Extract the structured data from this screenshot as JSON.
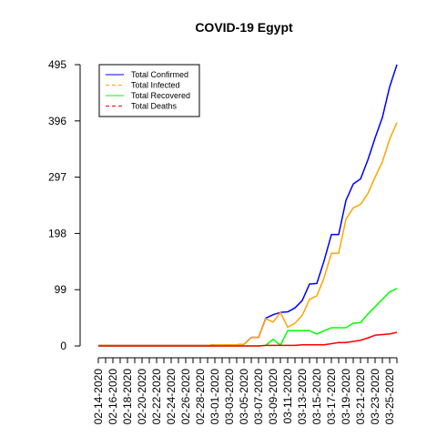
{
  "chart_data": {
    "type": "line",
    "title": "COVID-19 Egypt",
    "xlabel": "",
    "ylabel": "",
    "ylim": [
      0,
      495
    ],
    "y_ticks": [
      0,
      99,
      198,
      297,
      396,
      495
    ],
    "x_tick_labels": [
      "02-14-2020",
      "02-16-2020",
      "02-18-2020",
      "02-20-2020",
      "02-22-2020",
      "02-24-2020",
      "02-26-2020",
      "02-28-2020",
      "03-01-2020",
      "03-03-2020",
      "03-05-2020",
      "03-07-2020",
      "03-09-2020",
      "03-11-2020",
      "03-13-2020",
      "03-15-2020",
      "03-17-2020",
      "03-19-2020",
      "03-21-2020",
      "03-23-2020",
      "03-25-2020"
    ],
    "x": [
      "02-14-2020",
      "02-15-2020",
      "02-16-2020",
      "02-17-2020",
      "02-18-2020",
      "02-19-2020",
      "02-20-2020",
      "02-21-2020",
      "02-22-2020",
      "02-23-2020",
      "02-24-2020",
      "02-25-2020",
      "02-26-2020",
      "02-27-2020",
      "02-28-2020",
      "02-29-2020",
      "03-01-2020",
      "03-02-2020",
      "03-03-2020",
      "03-04-2020",
      "03-05-2020",
      "03-06-2020",
      "03-07-2020",
      "03-08-2020",
      "03-09-2020",
      "03-10-2020",
      "03-11-2020",
      "03-12-2020",
      "03-13-2020",
      "03-14-2020",
      "03-15-2020",
      "03-16-2020",
      "03-17-2020",
      "03-18-2020",
      "03-19-2020",
      "03-20-2020",
      "03-21-2020",
      "03-22-2020",
      "03-23-2020",
      "03-24-2020",
      "03-25-2020",
      "03-26-2020"
    ],
    "series": [
      {
        "name": "Total Confirmed",
        "color": "#0000ff",
        "dash": "solid",
        "values": [
          1,
          1,
          1,
          1,
          1,
          1,
          1,
          1,
          1,
          1,
          1,
          1,
          1,
          1,
          1,
          1,
          2,
          2,
          2,
          2,
          3,
          15,
          15,
          49,
          55,
          59,
          60,
          67,
          80,
          109,
          110,
          150,
          196,
          196,
          256,
          285,
          294,
          327,
          366,
          402,
          456,
          495
        ]
      },
      {
        "name": "Total Infected",
        "color": "#ffa500",
        "dash": "dashed",
        "values": [
          1,
          1,
          1,
          1,
          1,
          1,
          1,
          1,
          1,
          1,
          1,
          1,
          1,
          1,
          1,
          1,
          2,
          2,
          2,
          2,
          3,
          15,
          15,
          48,
          42,
          59,
          33,
          40,
          54,
          82,
          88,
          120,
          163,
          163,
          223,
          243,
          249,
          268,
          297,
          324,
          364,
          393
        ]
      },
      {
        "name": "Total Recovered",
        "color": "#00ff00",
        "dash": "solid",
        "values": [
          0,
          0,
          0,
          0,
          0,
          0,
          0,
          0,
          0,
          0,
          0,
          0,
          0,
          0,
          0,
          0,
          0,
          0,
          0,
          0,
          0,
          0,
          0,
          1,
          12,
          1,
          27,
          27,
          27,
          27,
          21,
          27,
          32,
          32,
          32,
          40,
          41,
          56,
          69,
          82,
          95,
          101
        ]
      },
      {
        "name": "Total Deaths",
        "color": "#ff0000",
        "dash": "dashed",
        "values": [
          0,
          0,
          0,
          0,
          0,
          0,
          0,
          0,
          0,
          0,
          0,
          0,
          0,
          0,
          0,
          0,
          0,
          0,
          0,
          0,
          0,
          0,
          0,
          1,
          1,
          1,
          1,
          1,
          2,
          2,
          2,
          2,
          4,
          6,
          6,
          8,
          10,
          14,
          19,
          20,
          21,
          24
        ]
      }
    ],
    "legend": {
      "placement": "top-left",
      "entries": [
        "Total Confirmed",
        "Total Infected",
        "Total Recovered",
        "Total Deaths"
      ]
    }
  }
}
